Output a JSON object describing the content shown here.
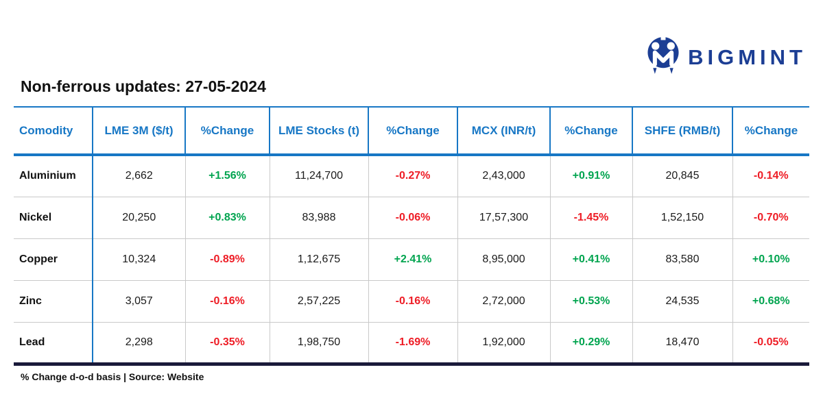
{
  "logo": {
    "text": "BIGMINT",
    "icon": "bigmint-emblem-icon",
    "color": "#1c3e94"
  },
  "header": {
    "title": "Non-ferrous updates: 27-05-2024"
  },
  "chart_data": {
    "type": "table",
    "title": "Non-ferrous updates: 27-05-2024",
    "columns": [
      "Comodity",
      "LME 3M ($/t)",
      "%Change",
      "LME Stocks (t)",
      "%Change",
      "MCX (INR/t)",
      "%Change",
      "SHFE (RMB/t)",
      "%Change"
    ],
    "rows": [
      [
        "Aluminium",
        "2,662",
        "+1.56%",
        "11,24,700",
        "-0.27%",
        "2,43,000",
        "+0.91%",
        "20,845",
        "-0.14%"
      ],
      [
        "Nickel",
        "20,250",
        "+0.83%",
        "83,988",
        "-0.06%",
        "17,57,300",
        "-1.45%",
        "1,52,150",
        "-0.70%"
      ],
      [
        "Copper",
        "10,324",
        "-0.89%",
        "1,12,675",
        "+2.41%",
        "8,95,000",
        "+0.41%",
        "83,580",
        "+0.10%"
      ],
      [
        "Zinc",
        "3,057",
        "-0.16%",
        "2,57,225",
        "-0.16%",
        "2,72,000",
        "+0.53%",
        "24,535",
        "+0.68%"
      ],
      [
        "Lead",
        "2,298",
        "-0.35%",
        "1,98,750",
        "-1.69%",
        "1,92,000",
        "+0.29%",
        "18,470",
        "-0.05%"
      ]
    ],
    "change_column_indexes": [
      2,
      4,
      6,
      8
    ]
  },
  "footer": {
    "note": "% Change d-o-d basis | Source: Website"
  },
  "colors": {
    "header_blue": "#1777c5",
    "positive_green": "#00a44f",
    "negative_red": "#ee1c25",
    "logo_blue": "#1c3e94",
    "grid_gray": "#c9c9c9",
    "bottom_border": "#1a1a3a",
    "text_dark": "#1a1a1a"
  }
}
